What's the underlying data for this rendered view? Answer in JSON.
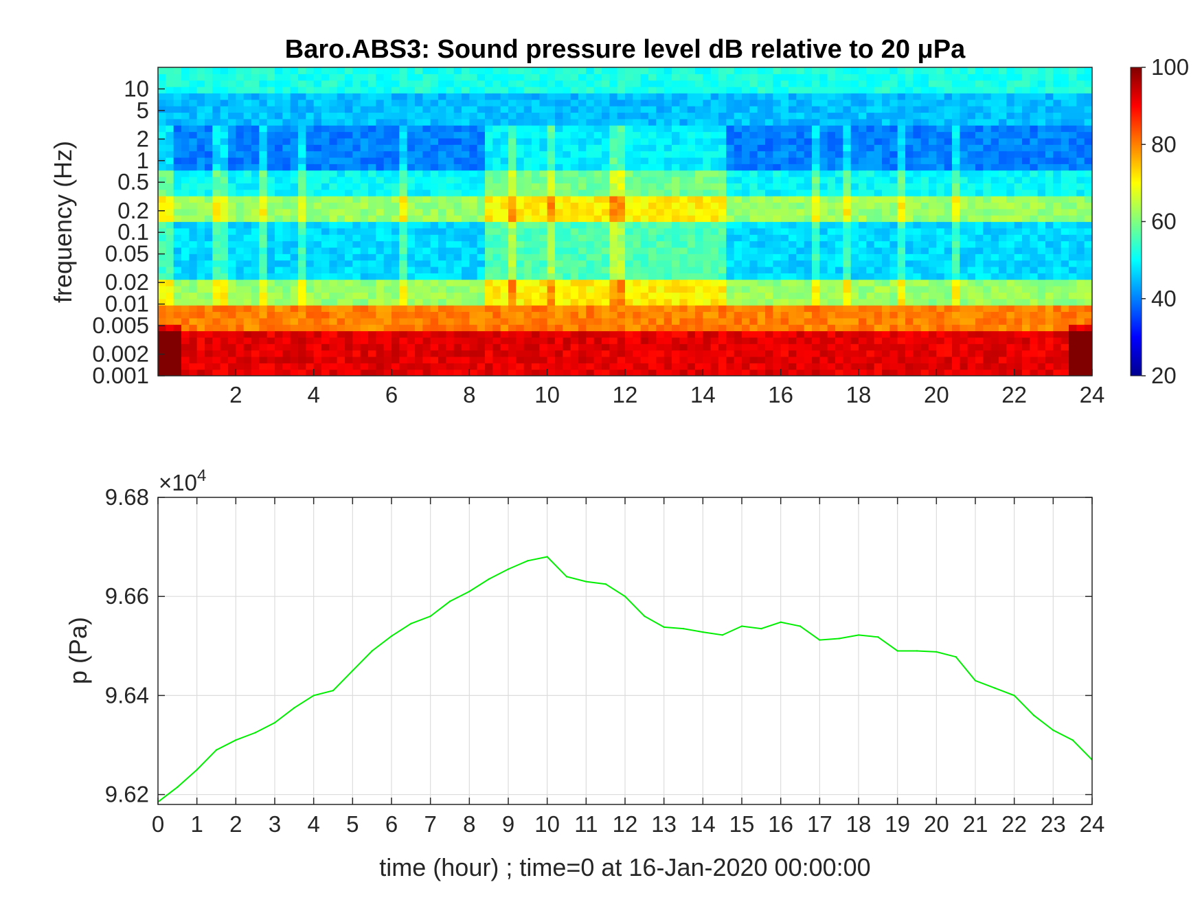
{
  "chart_data": [
    {
      "type": "heatmap",
      "title": "Baro.ABS3: Sound pressure level dB relative to 20 μPa",
      "ylabel": "frequency (Hz)",
      "xlabel": "",
      "x_ticks": [
        "2",
        "4",
        "6",
        "8",
        "10",
        "12",
        "14",
        "16",
        "18",
        "20",
        "22",
        "24"
      ],
      "y_ticks": [
        "0.001",
        "0.002",
        "0.005",
        "0.01",
        "0.02",
        "0.05",
        "0.1",
        "0.2",
        "0.5",
        "1",
        "2",
        "5",
        "10"
      ],
      "y_scale": "log",
      "xlim": [
        0,
        24
      ],
      "ylim": [
        0.001,
        20
      ],
      "colormap": "jet",
      "colorbar": {
        "ticks": [
          "20",
          "40",
          "60",
          "80",
          "100"
        ],
        "clim": [
          20,
          100
        ]
      },
      "level_bands_db": [
        {
          "f_min": 8,
          "f_max": 20,
          "db": 52
        },
        {
          "f_min": 3,
          "f_max": 8,
          "db": 45
        },
        {
          "f_min": 0.7,
          "f_max": 3,
          "db": 40
        },
        {
          "f_min": 0.35,
          "f_max": 0.7,
          "db": 50
        },
        {
          "f_min": 0.15,
          "f_max": 0.35,
          "db": 62
        },
        {
          "f_min": 0.02,
          "f_max": 0.15,
          "db": 47
        },
        {
          "f_min": 0.01,
          "f_max": 0.02,
          "db": 62
        },
        {
          "f_min": 0.004,
          "f_max": 0.01,
          "db": 80
        },
        {
          "f_min": 0.001,
          "f_max": 0.004,
          "db": 92
        }
      ],
      "active_periods_hours": [
        [
          8.5,
          14.5
        ]
      ],
      "grid": false
    },
    {
      "type": "line",
      "xlabel": "time (hour) ; time=0 at 16-Jan-2020 00:00:00",
      "ylabel": "p (Pa)",
      "y_exponent_label": "×10",
      "y_exponent": "4",
      "x_ticks": [
        "0",
        "1",
        "2",
        "3",
        "4",
        "5",
        "6",
        "7",
        "8",
        "9",
        "10",
        "11",
        "12",
        "13",
        "14",
        "15",
        "16",
        "17",
        "18",
        "19",
        "20",
        "21",
        "22",
        "23",
        "24"
      ],
      "y_ticks": [
        "9.62",
        "9.64",
        "9.66",
        "9.68"
      ],
      "xlim": [
        0,
        24
      ],
      "ylim": [
        96180,
        96800
      ],
      "grid": true,
      "series": [
        {
          "color": "#00ee00",
          "x": [
            0,
            0.5,
            1,
            1.5,
            2,
            2.5,
            3,
            3.5,
            4,
            4.5,
            5,
            5.5,
            6,
            6.5,
            7,
            7.5,
            8,
            8.5,
            9,
            9.5,
            10,
            10.5,
            11,
            11.5,
            12,
            12.5,
            13,
            13.5,
            14,
            14.5,
            15,
            15.5,
            16,
            16.5,
            17,
            17.5,
            18,
            18.5,
            19,
            19.5,
            20,
            20.5,
            21,
            21.5,
            22,
            22.5,
            23,
            23.5,
            24
          ],
          "y": [
            96185,
            96215,
            96250,
            96290,
            96310,
            96325,
            96345,
            96375,
            96400,
            96410,
            96450,
            96490,
            96520,
            96545,
            96560,
            96590,
            96610,
            96635,
            96655,
            96672,
            96680,
            96640,
            96630,
            96625,
            96600,
            96560,
            96538,
            96535,
            96528,
            96522,
            96540,
            96535,
            96548,
            96540,
            96512,
            96515,
            96522,
            96518,
            96490,
            96490,
            96488,
            96478,
            96430,
            96415,
            96400,
            96360,
            96330,
            96310,
            96270
          ]
        }
      ]
    }
  ]
}
